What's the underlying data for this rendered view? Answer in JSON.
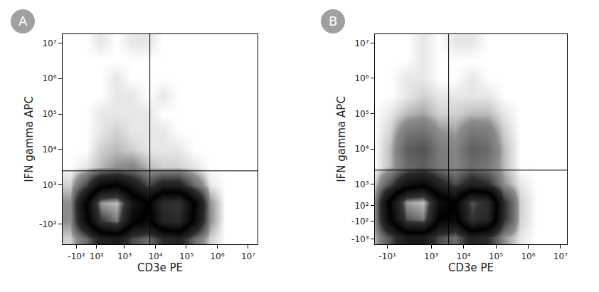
{
  "chart_data": [
    {
      "panel": "A",
      "type": "heatmap",
      "grid": false,
      "x_label": "CD3e PE",
      "y_label": "IFN gamma APC",
      "xlim": [
        1.0,
        7.3
      ],
      "ylim": [
        1.33,
        7.25
      ],
      "xticks": [
        {
          "value": 1.45,
          "label": "-10²"
        },
        {
          "value": 2.1,
          "label": "10²"
        },
        {
          "value": 3,
          "label": "10³"
        },
        {
          "value": 4,
          "label": "10⁴"
        },
        {
          "value": 5,
          "label": "10⁵"
        },
        {
          "value": 6,
          "label": "10⁶"
        },
        {
          "value": 7,
          "label": "10⁷"
        }
      ],
      "yticks": [
        {
          "value": 1.9,
          "label": "-10²"
        },
        {
          "value": 3,
          "label": "10³"
        },
        {
          "value": 4,
          "label": "10⁴"
        },
        {
          "value": 5,
          "label": "10⁵"
        },
        {
          "value": 6,
          "label": "10⁶"
        },
        {
          "value": 7,
          "label": "10⁷"
        }
      ],
      "gates": {
        "x": 3.82,
        "y": 3.4
      },
      "x": [
        1.25,
        1.75,
        2.25,
        2.75,
        3.25,
        3.75,
        4.25,
        4.75,
        5.25,
        5.75,
        6.25,
        6.75,
        7.25
      ],
      "y": [
        1.5,
        2.0,
        2.5,
        3.0,
        3.5,
        4.0,
        4.5,
        5.0,
        5.5,
        6.0,
        6.5,
        7.0
      ],
      "density": [
        [
          2,
          10,
          25,
          30,
          15,
          10,
          20,
          25,
          10,
          2,
          0,
          0,
          0
        ],
        [
          5,
          40,
          80,
          90,
          50,
          40,
          70,
          75,
          40,
          5,
          0,
          0,
          0
        ],
        [
          5,
          45,
          95,
          100,
          60,
          45,
          75,
          80,
          45,
          5,
          0,
          0,
          0
        ],
        [
          2,
          15,
          40,
          45,
          30,
          15,
          25,
          25,
          10,
          1,
          0,
          0,
          0
        ],
        [
          0,
          1,
          3,
          5,
          6,
          3,
          2,
          2,
          1,
          0,
          0,
          0,
          0
        ],
        [
          0,
          0,
          2,
          3,
          2,
          1,
          1,
          1,
          0,
          0,
          0,
          0,
          0
        ],
        [
          0,
          0,
          1,
          2,
          1,
          1,
          1,
          0,
          0,
          0,
          0,
          0,
          0
        ],
        [
          0,
          0,
          1,
          1,
          1,
          1,
          0,
          0,
          0,
          0,
          0,
          0,
          0
        ],
        [
          0,
          0,
          0,
          1,
          1,
          0,
          1,
          0,
          0,
          0,
          0,
          0,
          0
        ],
        [
          0,
          0,
          0,
          1,
          0,
          0,
          0,
          0,
          0,
          0,
          0,
          0,
          0
        ],
        [
          0,
          0,
          0,
          0,
          0,
          0,
          0,
          0,
          0,
          0,
          0,
          0,
          0
        ],
        [
          0,
          0,
          1,
          0,
          1,
          1,
          0,
          0,
          0,
          0,
          0,
          0,
          0
        ]
      ]
    },
    {
      "panel": "B",
      "type": "heatmap",
      "grid": false,
      "x_label": "CD3e PE",
      "y_label": "IFN gamma APC",
      "xlim": [
        1.26,
        7.2
      ],
      "ylim": [
        1.3,
        7.25
      ],
      "xticks": [
        {
          "value": 1.65,
          "label": "-10¹"
        },
        {
          "value": 3,
          "label": "10³"
        },
        {
          "value": 4,
          "label": "10⁴"
        },
        {
          "value": 5,
          "label": "10⁵"
        },
        {
          "value": 6,
          "label": "10⁶"
        },
        {
          "value": 7,
          "label": "10⁷"
        }
      ],
      "yticks": [
        {
          "value": 1.45,
          "label": "-10³"
        },
        {
          "value": 1.95,
          "label": "-10²"
        },
        {
          "value": 2.4,
          "label": "10²"
        },
        {
          "value": 3,
          "label": "10³"
        },
        {
          "value": 4,
          "label": "10⁴"
        },
        {
          "value": 5,
          "label": "10⁵"
        },
        {
          "value": 6,
          "label": "10⁶"
        },
        {
          "value": 7,
          "label": "10⁷"
        }
      ],
      "gates": {
        "x": 3.54,
        "y": 3.4
      },
      "x": [
        1.25,
        1.75,
        2.25,
        2.75,
        3.25,
        3.75,
        4.25,
        4.75,
        5.25,
        5.75,
        6.25,
        6.75,
        7.25
      ],
      "y": [
        1.5,
        2.0,
        2.5,
        3.0,
        3.5,
        4.0,
        4.5,
        5.0,
        5.5,
        6.0,
        6.5,
        7.0
      ],
      "density": [
        [
          3,
          15,
          30,
          30,
          15,
          10,
          25,
          20,
          5,
          1,
          0,
          0,
          0
        ],
        [
          5,
          45,
          85,
          90,
          45,
          40,
          80,
          70,
          20,
          2,
          0,
          0,
          0
        ],
        [
          5,
          50,
          95,
          100,
          55,
          45,
          85,
          75,
          20,
          2,
          0,
          0,
          0
        ],
        [
          2,
          15,
          35,
          40,
          25,
          15,
          25,
          20,
          5,
          1,
          0,
          0,
          0
        ],
        [
          0,
          3,
          10,
          12,
          8,
          6,
          10,
          8,
          3,
          0,
          0,
          0,
          0
        ],
        [
          0,
          3,
          12,
          14,
          8,
          6,
          12,
          10,
          3,
          0,
          0,
          0,
          0
        ],
        [
          0,
          2,
          8,
          9,
          5,
          4,
          8,
          7,
          2,
          0,
          0,
          0,
          0
        ],
        [
          0,
          1,
          3,
          4,
          2,
          2,
          3,
          3,
          1,
          0,
          0,
          0,
          0
        ],
        [
          0,
          0,
          1,
          2,
          1,
          1,
          1,
          1,
          0,
          0,
          0,
          0,
          0
        ],
        [
          0,
          0,
          1,
          1,
          0,
          0,
          1,
          0,
          0,
          0,
          0,
          0,
          0
        ],
        [
          0,
          0,
          0,
          1,
          0,
          0,
          0,
          0,
          0,
          0,
          0,
          0,
          0
        ],
        [
          0,
          0,
          0,
          1,
          0,
          1,
          1,
          0,
          0,
          0,
          0,
          0,
          0
        ]
      ]
    }
  ]
}
